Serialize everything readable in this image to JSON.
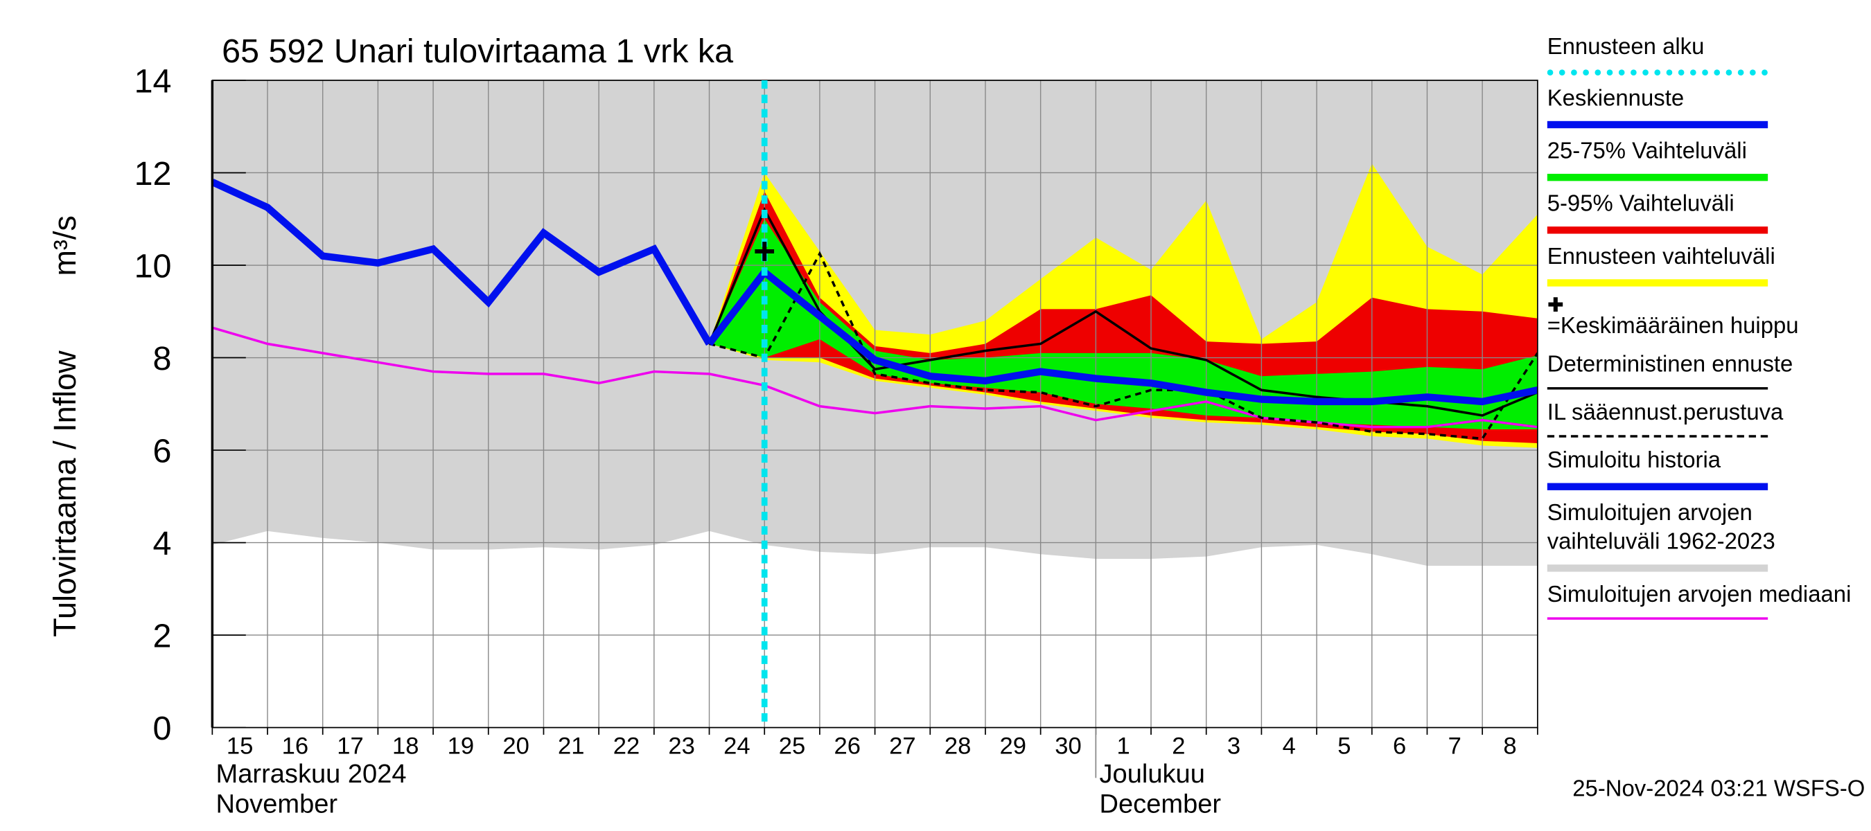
{
  "chart_data": {
    "type": "line",
    "title": "65 592 Unari tulovirtaama 1 vrk ka",
    "y_label": "Tulovirtaama / Inflow",
    "y_unit": "m³/s",
    "timestamp": "25-Nov-2024 03:21 WSFS-O",
    "categories": [
      "15",
      "16",
      "17",
      "18",
      "19",
      "20",
      "21",
      "22",
      "23",
      "24",
      "25",
      "26",
      "27",
      "28",
      "29",
      "30",
      "1",
      "2",
      "3",
      "4",
      "5",
      "6",
      "7",
      "8",
      null
    ],
    "month_labels": [
      {
        "category": "15",
        "lines": [
          "Marraskuu 2024",
          "November"
        ]
      },
      {
        "category": "1",
        "lines": [
          "Joulukuu",
          "December"
        ]
      }
    ],
    "ylim": [
      0,
      14
    ],
    "yticks": [
      0,
      2,
      4,
      6,
      8,
      10,
      12,
      14
    ],
    "grid": true,
    "forecast_start": {
      "name": "Ennusteen alku",
      "category": "25",
      "color": "#00e5ee"
    },
    "peak": {
      "name": "=Keskimääräinen huippu",
      "category": "25",
      "value": 10.3,
      "color": "#000000"
    },
    "series": [
      {
        "name": "Keskiennuste",
        "color": "#0010ee",
        "style": "thick",
        "values": [
          null,
          null,
          null,
          null,
          null,
          null,
          null,
          null,
          null,
          8.3,
          9.85,
          8.9,
          7.95,
          7.6,
          7.5,
          7.7,
          7.55,
          7.45,
          7.25,
          7.1,
          7.05,
          7.05,
          7.15,
          7.05,
          7.3
        ]
      },
      {
        "name": "25-75% Vaihteluväli",
        "color": "#00ee00",
        "style": "band",
        "high": [
          null,
          null,
          null,
          null,
          null,
          null,
          null,
          null,
          null,
          8.3,
          11.0,
          9.2,
          8.15,
          7.95,
          8.0,
          8.1,
          8.1,
          8.1,
          7.95,
          7.6,
          7.65,
          7.7,
          7.8,
          7.75,
          8.05
        ],
        "low": [
          null,
          null,
          null,
          null,
          null,
          null,
          null,
          null,
          null,
          8.3,
          8.0,
          8.4,
          7.65,
          7.45,
          7.35,
          7.25,
          7.0,
          6.9,
          6.75,
          6.7,
          6.6,
          6.55,
          6.5,
          6.45,
          6.45
        ]
      },
      {
        "name": "5-95% Vaihteluväli",
        "color": "#ee0000",
        "style": "band",
        "high": [
          null,
          null,
          null,
          null,
          null,
          null,
          null,
          null,
          null,
          8.3,
          11.6,
          9.3,
          8.25,
          8.1,
          8.3,
          9.05,
          9.05,
          9.35,
          8.35,
          8.3,
          8.35,
          9.3,
          9.05,
          9.0,
          8.85
        ],
        "low": [
          null,
          null,
          null,
          null,
          null,
          null,
          null,
          null,
          null,
          8.3,
          8.0,
          8.0,
          7.55,
          7.4,
          7.25,
          7.05,
          6.9,
          6.75,
          6.65,
          6.6,
          6.5,
          6.4,
          6.35,
          6.2,
          6.15
        ]
      },
      {
        "name": "Ennusteen vaihteluväli",
        "color": "#ffff00",
        "style": "band",
        "high": [
          null,
          null,
          null,
          null,
          null,
          null,
          null,
          null,
          null,
          8.3,
          12.0,
          10.3,
          8.6,
          8.5,
          8.8,
          9.7,
          10.6,
          9.9,
          11.4,
          8.4,
          9.2,
          12.2,
          10.4,
          9.8,
          11.1
        ],
        "low": [
          null,
          null,
          null,
          null,
          null,
          null,
          null,
          null,
          null,
          8.3,
          7.95,
          7.9,
          7.5,
          7.35,
          7.2,
          7.0,
          6.85,
          6.7,
          6.6,
          6.55,
          6.45,
          6.3,
          6.25,
          6.1,
          6.05
        ]
      },
      {
        "name": "Deterministinen ennuste",
        "color": "#000000",
        "style": "thin",
        "values": [
          null,
          null,
          null,
          null,
          null,
          null,
          null,
          null,
          null,
          8.3,
          11.2,
          9.0,
          7.75,
          7.95,
          8.15,
          8.3,
          9.0,
          8.2,
          7.95,
          7.3,
          7.15,
          7.05,
          6.95,
          6.75,
          7.25
        ]
      },
      {
        "name": "IL sääennust.perustuva",
        "color": "#000000",
        "style": "dashed",
        "values": [
          null,
          null,
          null,
          null,
          null,
          null,
          null,
          null,
          null,
          8.3,
          8.0,
          10.25,
          7.65,
          7.45,
          7.3,
          7.25,
          6.95,
          7.3,
          7.3,
          6.7,
          6.6,
          6.4,
          6.35,
          6.25,
          8.1
        ]
      },
      {
        "name": "Simuloitu historia",
        "color": "#0010ee",
        "style": "thick",
        "values": [
          11.8,
          11.25,
          10.2,
          10.05,
          10.35,
          9.2,
          10.7,
          9.85,
          10.35,
          8.3,
          null,
          null,
          null,
          null,
          null,
          null,
          null,
          null,
          null,
          null,
          null,
          null,
          null,
          null,
          null
        ]
      },
      {
        "name": "Simuloitujen arvojen vaihteluväli 1962-2023",
        "color": "#d3d3d3",
        "style": "band",
        "high": [
          14,
          14,
          14,
          14,
          14,
          14,
          14,
          14,
          14,
          14,
          14,
          14,
          14,
          14,
          14,
          14,
          14,
          14,
          14,
          14,
          14,
          14,
          14,
          14,
          14
        ],
        "low": [
          3.95,
          4.25,
          4.1,
          4.0,
          3.85,
          3.85,
          3.9,
          3.85,
          3.95,
          4.25,
          3.95,
          3.8,
          3.75,
          3.9,
          3.9,
          3.75,
          3.65,
          3.65,
          3.7,
          3.9,
          3.95,
          3.75,
          3.5,
          3.5,
          3.5
        ]
      },
      {
        "name": "Simuloitujen arvojen mediaani",
        "color": "#ee00ee",
        "style": "thin",
        "values": [
          8.65,
          8.3,
          8.1,
          7.9,
          7.7,
          7.65,
          7.65,
          7.45,
          7.7,
          7.65,
          7.4,
          6.95,
          6.8,
          6.95,
          6.9,
          6.95,
          6.65,
          6.85,
          7.05,
          6.7,
          6.6,
          6.5,
          6.5,
          6.65,
          6.5
        ]
      }
    ]
  }
}
